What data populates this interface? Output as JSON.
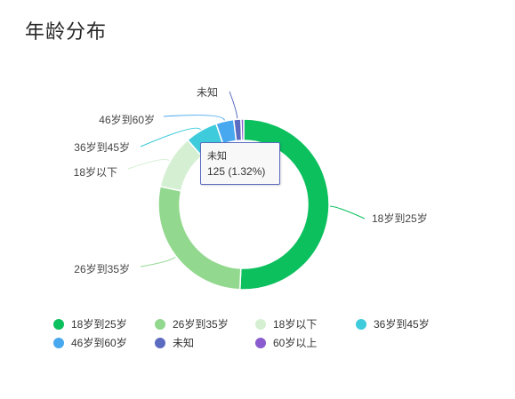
{
  "title": "年龄分布",
  "tooltip": {
    "name": "未知",
    "value_text": "125 (1.32%)"
  },
  "chart_data": {
    "type": "pie",
    "title": "年龄分布",
    "donut": true,
    "legend_position": "bottom",
    "categories": [
      "18岁到25岁",
      "26岁到35岁",
      "18岁以下",
      "36岁到45岁",
      "46岁到60岁",
      "未知",
      "60岁以上"
    ],
    "values": [
      49.5,
      27.0,
      10.0,
      6.0,
      3.3,
      1.32,
      0.5
    ],
    "colors": [
      "#0cc05e",
      "#92d88e",
      "#d4efd2",
      "#3ecbdb",
      "#48a8ef",
      "#5b6bc0",
      "#8a5ccf"
    ],
    "labeled_slices": [
      "18岁到25岁",
      "26岁到35岁",
      "18岁以下",
      "36岁到45岁",
      "46岁到60岁",
      "未知"
    ],
    "units": "%"
  }
}
